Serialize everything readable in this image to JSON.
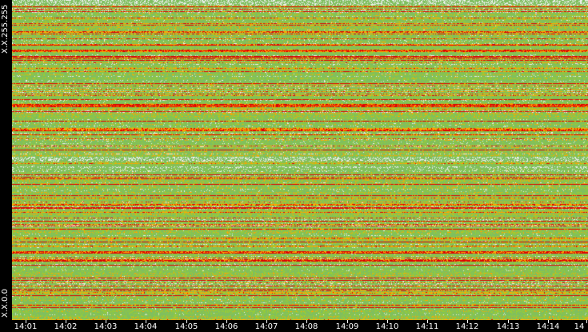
{
  "chart_data": {
    "type": "heatmap",
    "y_axis": {
      "top_label": "X.X.255.255",
      "bottom_label": "X.X.0.0"
    },
    "x_axis": {
      "tick_labels": [
        "14:01",
        "14:02",
        "14:03",
        "14:04",
        "14:05",
        "14:06",
        "14:07",
        "14:08",
        "14:09",
        "14:10",
        "14:11",
        "14:12",
        "14:13",
        "14:14",
        "14"
      ],
      "start": "14:00:40",
      "end": "14:15:00"
    },
    "palette": {
      "low": "#7fbf5f",
      "mid": "#9acd32",
      "high": "#ffa500",
      "max": "#e00000",
      "none": "#f0f0f0"
    },
    "background": "#000000",
    "text_color": "#ffffff"
  }
}
